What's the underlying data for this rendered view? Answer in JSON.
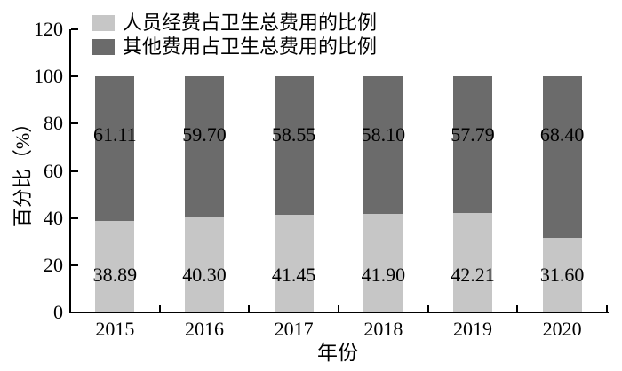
{
  "chart_data": {
    "type": "bar",
    "stacked": true,
    "title": "",
    "xlabel": "年份",
    "ylabel": "百分比（%）",
    "categories": [
      "2015",
      "2016",
      "2017",
      "2018",
      "2019",
      "2020"
    ],
    "series": [
      {
        "name": "人员经费占卫生总费用的比例",
        "color": "#c6c6c6",
        "values": [
          38.89,
          40.3,
          41.45,
          41.9,
          42.21,
          31.6
        ],
        "labels": [
          "38.89",
          "40.30",
          "41.45",
          "41.90",
          "42.21",
          "31.60"
        ]
      },
      {
        "name": "其他费用占卫生总费用的比例",
        "color": "#6b6b6b",
        "values": [
          61.11,
          59.7,
          58.55,
          58.1,
          57.79,
          68.4
        ],
        "labels": [
          "61.11",
          "59.70",
          "58.55",
          "58.10",
          "57.79",
          "68.40"
        ]
      }
    ],
    "ylim": [
      0,
      120
    ],
    "yticks": [
      0,
      20,
      40,
      60,
      80,
      100,
      120
    ],
    "grid": false,
    "legend_position": "top-left",
    "axis_color": "#000000",
    "text_color": "#000000"
  }
}
